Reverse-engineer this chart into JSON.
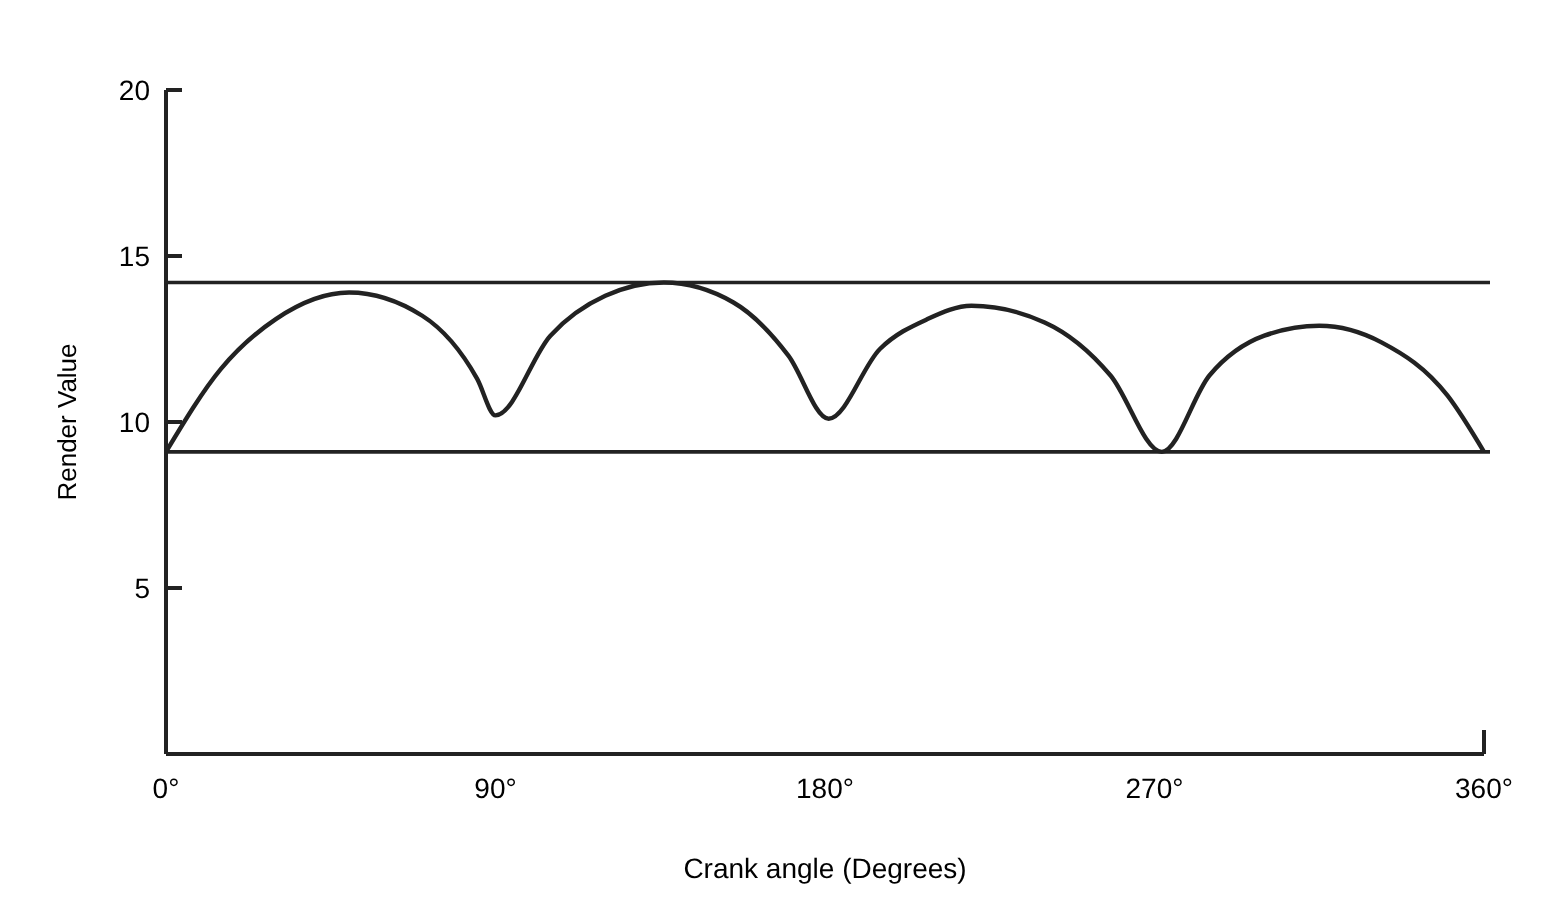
{
  "chart_data": {
    "type": "line",
    "xlabel": "Crank angle (Degrees)",
    "ylabel": "Render Value",
    "x": [
      0,
      15,
      30,
      50,
      70,
      85,
      90,
      105,
      120,
      136,
      155,
      170,
      181,
      195,
      208,
      220,
      240,
      258,
      272,
      285,
      300,
      315,
      332,
      350,
      360
    ],
    "series": [
      {
        "color": "#222222",
        "values": [
          9.1,
          11.6,
          13.1,
          13.9,
          13.2,
          11.3,
          10.2,
          12.6,
          13.8,
          14.2,
          13.6,
          12.0,
          10.1,
          12.2,
          13.1,
          13.5,
          13.0,
          11.4,
          9.1,
          11.4,
          12.6,
          12.9,
          12.4,
          10.8,
          9.1
        ]
      }
    ],
    "xlim": [
      0,
      360
    ],
    "xticks": [
      {
        "value": 0,
        "label": "0°"
      },
      {
        "value": 90,
        "label": "90°"
      },
      {
        "value": 180,
        "label": "180°"
      },
      {
        "value": 270,
        "label": "270°"
      },
      {
        "value": 360,
        "label": "360°"
      }
    ],
    "ylim": [
      0,
      20
    ],
    "yticks": [
      5,
      10,
      15,
      20
    ],
    "ref_lines": [
      {
        "axis": "y",
        "value": 14.2
      },
      {
        "axis": "y",
        "value": 9.1
      }
    ],
    "marker": "none",
    "line_style": "solid"
  }
}
